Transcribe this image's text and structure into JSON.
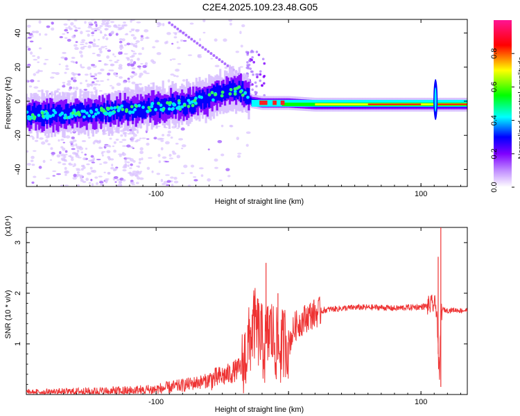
{
  "title": "C2E4.2025.109.23.48.G05",
  "chart_data": [
    {
      "type": "heatmap",
      "xlabel": "Height of straight line (km)",
      "ylabel": "Frequency (Hz)",
      "xlim": [
        -198,
        135
      ],
      "ylim": [
        -50,
        48
      ],
      "xticks": [
        -100,
        0,
        100
      ],
      "xtick_labels": [
        "-100",
        "",
        "100"
      ],
      "yticks": [
        -40,
        -20,
        0,
        20,
        40
      ],
      "ytick_labels": [
        "-40",
        "-20",
        "0",
        "20",
        "40"
      ],
      "colorbar": {
        "label": "Normalized spectral amplitude",
        "range": [
          0,
          1
        ],
        "ticks": [
          0.0,
          0.2,
          0.4,
          0.6,
          0.8
        ],
        "tick_labels": [
          "0.0",
          "0.2",
          "0.4",
          "0.6",
          "0.8"
        ],
        "colormap": [
          "#ffffff",
          "#7f00ff",
          "#0000ff",
          "#00ffff",
          "#00ff00",
          "#ffff00",
          "#ff0000",
          "#ff1493"
        ]
      },
      "ridge": {
        "description_points_x": [
          -198,
          -150,
          -110,
          -80,
          -60,
          -45,
          -35,
          -28,
          -20,
          -10,
          0,
          20,
          60,
          95,
          110,
          135
        ],
        "description_points_y": [
          -8,
          -7,
          -4,
          -2,
          2,
          6,
          6,
          0,
          -1,
          -1,
          -1,
          -2,
          -2,
          -2,
          -2,
          -2
        ]
      }
    },
    {
      "type": "line",
      "xlabel": "Height of straight line (km)",
      "ylabel": "SNR (10 * v/v)",
      "y_multiplier": "(x10⁴)",
      "xlim": [
        -198,
        135
      ],
      "ylim": [
        0,
        3.3
      ],
      "xticks": [
        -100,
        0,
        100
      ],
      "xtick_labels": [
        "-100",
        "",
        "100"
      ],
      "yticks": [
        1,
        2,
        3
      ],
      "ytick_labels": [
        "1",
        "2",
        "3"
      ],
      "color": "#ee3333",
      "series": [
        {
          "x": [
            -198,
            -180,
            -160,
            -140,
            -120,
            -100,
            -80,
            -60,
            -45,
            -35,
            -30,
            -26,
            -22,
            -18,
            -14,
            -10,
            -6,
            -2,
            0,
            5,
            10,
            15,
            20,
            25,
            30,
            40,
            50,
            60,
            70,
            80,
            90,
            100,
            105,
            110,
            112,
            113,
            114,
            115,
            116,
            120,
            125,
            130,
            135
          ],
          "y": [
            0.05,
            0.05,
            0.06,
            0.06,
            0.07,
            0.1,
            0.18,
            0.28,
            0.4,
            0.55,
            1.0,
            1.4,
            1.2,
            0.9,
            1.3,
            1.0,
            0.9,
            1.1,
            1.0,
            1.35,
            1.45,
            1.55,
            1.6,
            1.65,
            1.68,
            1.7,
            1.72,
            1.72,
            1.72,
            1.7,
            1.72,
            1.73,
            1.75,
            1.78,
            1.7,
            0.8,
            0.3,
            1.6,
            1.68,
            1.66,
            1.67,
            1.66,
            1.66
          ]
        }
      ],
      "spikes": [
        {
          "x": -26,
          "y": 1.95
        },
        {
          "x": -17,
          "y": 2.6
        },
        {
          "x": -8,
          "y": 2.0
        },
        {
          "x": 113,
          "y": 2.72
        },
        {
          "x": 115,
          "y": 3.3
        },
        {
          "x": 115,
          "y": 0.15
        }
      ]
    }
  ]
}
